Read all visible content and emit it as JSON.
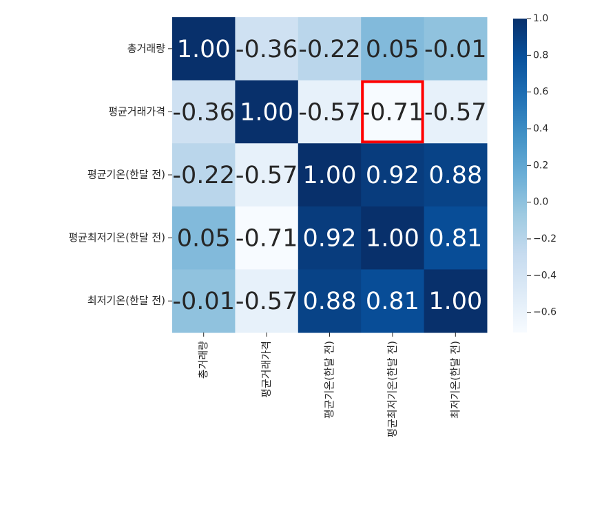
{
  "chart_data": {
    "type": "heatmap",
    "x_categories": [
      "총거래량",
      "평균거래가격",
      "평균기온(한달 전)",
      "평균최저기온(한달 전)",
      "최저기온(한달 전)"
    ],
    "y_categories": [
      "총거래량",
      "평균거래가격",
      "평균기온(한달 전)",
      "평균최저기온(한달 전)",
      "최저기온(한달 전)"
    ],
    "values": [
      [
        1.0,
        -0.36,
        -0.22,
        0.05,
        -0.01
      ],
      [
        -0.36,
        1.0,
        -0.57,
        -0.71,
        -0.57
      ],
      [
        -0.22,
        -0.57,
        1.0,
        0.92,
        0.88
      ],
      [
        0.05,
        -0.71,
        0.92,
        1.0,
        0.81
      ],
      [
        -0.01,
        -0.57,
        0.88,
        0.81,
        1.0
      ]
    ],
    "value_labels": [
      [
        "1.00",
        "-0.36",
        "-0.22",
        "0.05",
        "-0.01"
      ],
      [
        "-0.36",
        "1.00",
        "-0.57",
        "-0.71",
        "-0.57"
      ],
      [
        "-0.22",
        "-0.57",
        "1.00",
        "0.92",
        "0.88"
      ],
      [
        "0.05",
        "-0.71",
        "0.92",
        "1.00",
        "0.81"
      ],
      [
        "-0.01",
        "-0.57",
        "0.88",
        "0.81",
        "1.00"
      ]
    ],
    "colormap": [
      "#f7fbff",
      "#deebf7",
      "#c6dbef",
      "#9ecae1",
      "#6baed6",
      "#4292c6",
      "#2171b5",
      "#08519c",
      "#08306b"
    ],
    "clim": [
      -0.71,
      1.0
    ],
    "cticks": [
      {
        "value": 1.0,
        "label": "1.0"
      },
      {
        "value": 0.8,
        "label": "0.8"
      },
      {
        "value": 0.6,
        "label": "0.6"
      },
      {
        "value": 0.4,
        "label": "0.4"
      },
      {
        "value": 0.2,
        "label": "0.2"
      },
      {
        "value": 0.0,
        "label": "0.0"
      },
      {
        "value": -0.2,
        "label": "−0.2"
      },
      {
        "value": -0.4,
        "label": "−0.4"
      },
      {
        "value": -0.6,
        "label": "−0.6"
      }
    ],
    "highlight": {
      "row": 1,
      "col": 3,
      "color": "#ff0000"
    }
  }
}
